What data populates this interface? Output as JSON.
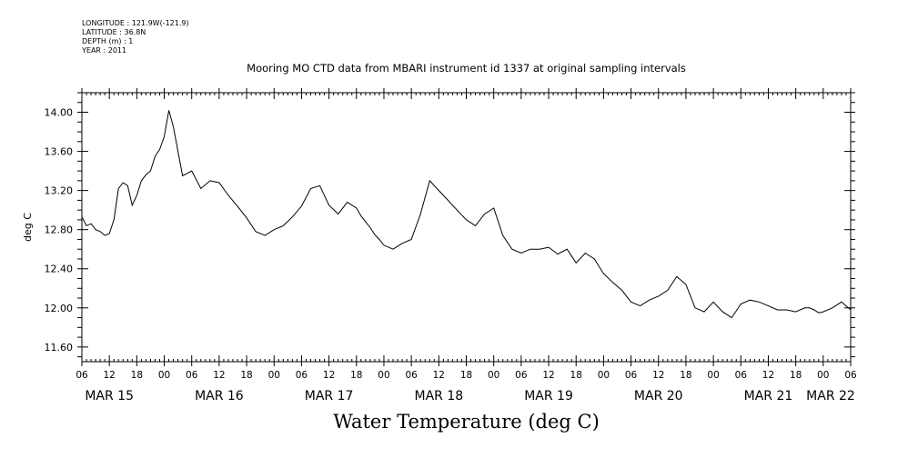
{
  "meta": {
    "longitude": "LONGITUDE : 121.9W(-121.9)",
    "latitude": "LATITUDE : 36.8N",
    "depth": "DEPTH (m) : 1",
    "year": "YEAR : 2011"
  },
  "chart_data": {
    "type": "line",
    "title": "Mooring MO CTD data from MBARI instrument id 1337 at original sampling intervals",
    "xlabel": "Water Temperature (deg C)",
    "ylabel": "deg C",
    "ylim": [
      11.45,
      14.2
    ],
    "yticks": [
      "11.60",
      "12.00",
      "12.40",
      "12.80",
      "13.20",
      "13.60",
      "14.00"
    ],
    "xlim": [
      "2011-03-15T06:00",
      "2011-03-22T06:00"
    ],
    "x_hour_ticks": [
      "06",
      "12",
      "18",
      "00",
      "06",
      "12",
      "18",
      "00",
      "06",
      "12",
      "18",
      "00",
      "06",
      "12",
      "18",
      "00",
      "06",
      "12",
      "18",
      "00",
      "06",
      "12",
      "18",
      "00",
      "06",
      "12",
      "18",
      "00",
      "06"
    ],
    "x_day_labels": [
      "MAR 15",
      "MAR 16",
      "MAR 17",
      "MAR 18",
      "MAR 19",
      "MAR 20",
      "MAR 21",
      "MAR 22"
    ],
    "grid": false,
    "series": [
      {
        "x": [
          "2011-03-15T06:00",
          "2011-03-15T07:00",
          "2011-03-15T08:00",
          "2011-03-15T09:00",
          "2011-03-15T10:00",
          "2011-03-15T11:00",
          "2011-03-15T12:00",
          "2011-03-15T13:00",
          "2011-03-15T14:00",
          "2011-03-15T15:00",
          "2011-03-15T16:00",
          "2011-03-15T17:00",
          "2011-03-15T18:00",
          "2011-03-15T19:00",
          "2011-03-15T20:00",
          "2011-03-15T21:00",
          "2011-03-15T22:00",
          "2011-03-15T23:00",
          "2011-03-16T00:00",
          "2011-03-16T01:00",
          "2011-03-16T02:00",
          "2011-03-16T03:00",
          "2011-03-16T04:00",
          "2011-03-16T06:00",
          "2011-03-16T08:00",
          "2011-03-16T10:00",
          "2011-03-16T12:00",
          "2011-03-16T14:00",
          "2011-03-16T16:00",
          "2011-03-16T18:00",
          "2011-03-16T20:00",
          "2011-03-16T22:00",
          "2011-03-17T00:00",
          "2011-03-17T02:00",
          "2011-03-17T04:00",
          "2011-03-17T06:00",
          "2011-03-17T08:00",
          "2011-03-17T10:00",
          "2011-03-17T12:00",
          "2011-03-17T14:00",
          "2011-03-17T16:00",
          "2011-03-17T18:00",
          "2011-03-17T19:00",
          "2011-03-17T20:00",
          "2011-03-17T21:00",
          "2011-03-17T22:00",
          "2011-03-17T23:00",
          "2011-03-18T00:00",
          "2011-03-18T02:00",
          "2011-03-18T04:00",
          "2011-03-18T06:00",
          "2011-03-18T08:00",
          "2011-03-18T10:00",
          "2011-03-18T12:00",
          "2011-03-18T14:00",
          "2011-03-18T16:00",
          "2011-03-18T18:00",
          "2011-03-18T20:00",
          "2011-03-18T22:00",
          "2011-03-19T00:00",
          "2011-03-19T02:00",
          "2011-03-19T04:00",
          "2011-03-19T06:00",
          "2011-03-19T08:00",
          "2011-03-19T10:00",
          "2011-03-19T12:00",
          "2011-03-19T14:00",
          "2011-03-19T16:00",
          "2011-03-19T18:00",
          "2011-03-19T20:00",
          "2011-03-19T22:00",
          "2011-03-20T00:00",
          "2011-03-20T02:00",
          "2011-03-20T04:00",
          "2011-03-20T06:00",
          "2011-03-20T08:00",
          "2011-03-20T10:00",
          "2011-03-20T12:00",
          "2011-03-20T14:00",
          "2011-03-20T16:00",
          "2011-03-20T18:00",
          "2011-03-20T20:00",
          "2011-03-20T22:00",
          "2011-03-21T00:00",
          "2011-03-21T02:00",
          "2011-03-21T04:00",
          "2011-03-21T06:00",
          "2011-03-21T08:00",
          "2011-03-21T10:00",
          "2011-03-21T12:00",
          "2011-03-21T14:00",
          "2011-03-21T16:00",
          "2011-03-21T18:00",
          "2011-03-21T20:00",
          "2011-03-21T21:00",
          "2011-03-21T22:00",
          "2011-03-21T23:00",
          "2011-03-22T00:00",
          "2011-03-22T02:00",
          "2011-03-22T04:00",
          "2011-03-22T06:00"
        ],
        "values": [
          12.93,
          12.84,
          12.86,
          12.8,
          12.78,
          12.74,
          12.76,
          12.9,
          13.22,
          13.28,
          13.25,
          13.05,
          13.15,
          13.3,
          13.36,
          13.4,
          13.55,
          13.62,
          13.75,
          14.02,
          13.85,
          13.6,
          13.35,
          13.4,
          13.22,
          13.3,
          13.28,
          13.15,
          13.04,
          12.92,
          12.78,
          12.74,
          12.8,
          12.84,
          12.93,
          13.04,
          13.22,
          13.25,
          13.05,
          12.96,
          13.08,
          13.02,
          12.94,
          12.88,
          12.82,
          12.75,
          12.7,
          12.64,
          12.6,
          12.66,
          12.7,
          12.96,
          13.3,
          13.2,
          13.1,
          13.0,
          12.9,
          12.84,
          12.96,
          13.02,
          12.74,
          12.6,
          12.56,
          12.6,
          12.6,
          12.62,
          12.55,
          12.6,
          12.46,
          12.56,
          12.5,
          12.35,
          12.26,
          12.18,
          12.06,
          12.02,
          12.08,
          12.12,
          12.18,
          12.32,
          12.24,
          12.0,
          11.96,
          12.06,
          11.96,
          11.9,
          12.04,
          12.08,
          12.06,
          12.02,
          11.98,
          11.98,
          11.96,
          12.0,
          12.0,
          11.98,
          11.95,
          11.96,
          12.0,
          12.06,
          11.98
        ]
      }
    ]
  }
}
